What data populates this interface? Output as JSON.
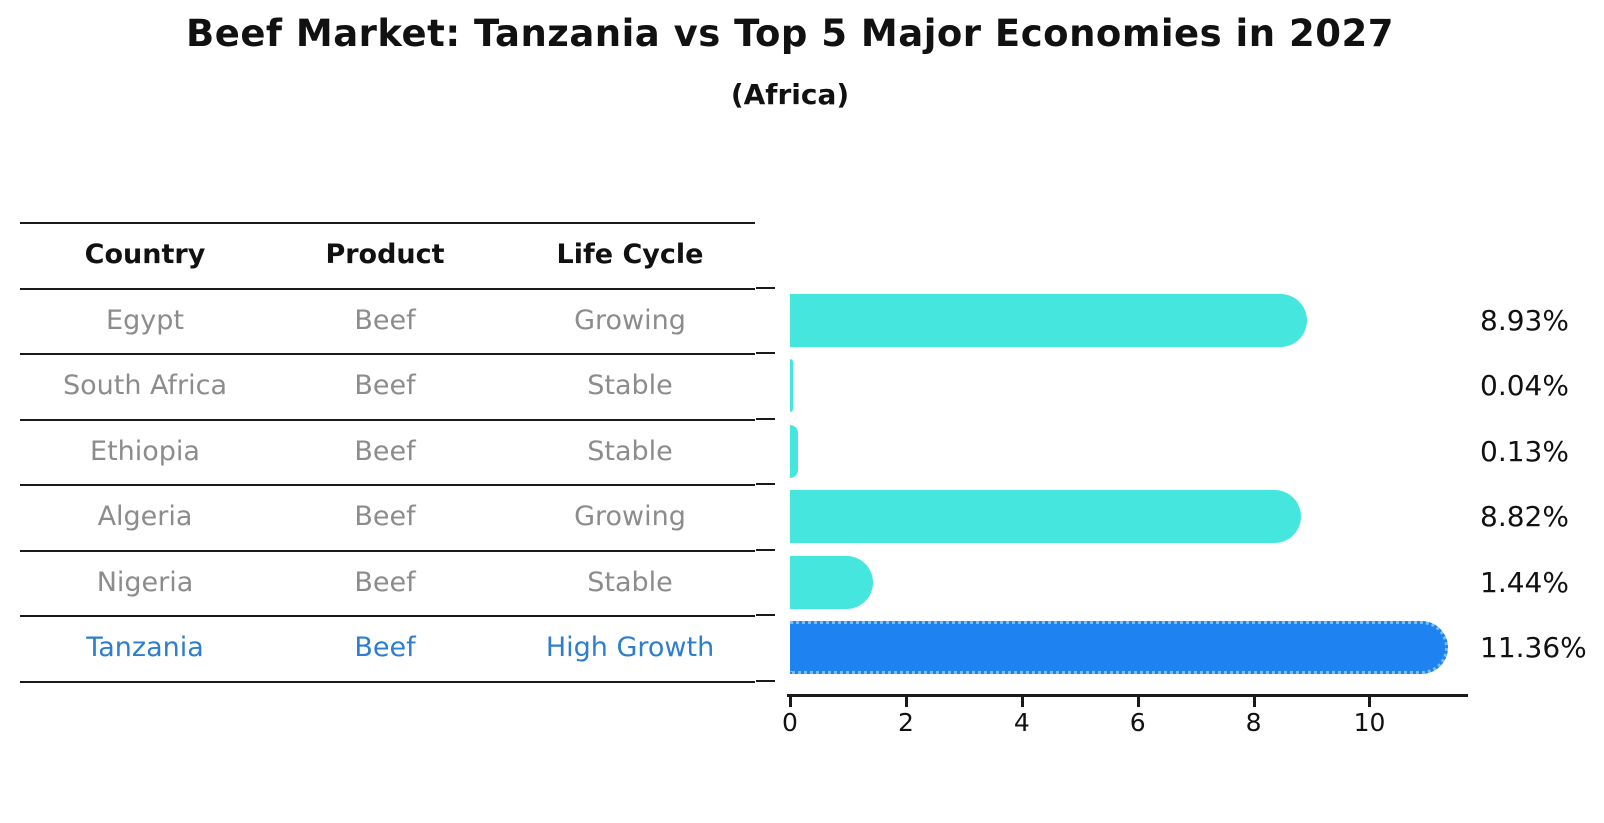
{
  "title": "Beef Market: Tanzania vs Top 5 Major Economies in 2027",
  "subtitle": "(Africa)",
  "table": {
    "headers": {
      "country": "Country",
      "product": "Product",
      "life_cycle": "Life Cycle"
    },
    "rows": [
      {
        "country": "Egypt",
        "product": "Beef",
        "life_cycle": "Growing",
        "highlight": false
      },
      {
        "country": "South Africa",
        "product": "Beef",
        "life_cycle": "Stable",
        "highlight": false
      },
      {
        "country": "Ethiopia",
        "product": "Beef",
        "life_cycle": "Stable",
        "highlight": false
      },
      {
        "country": "Algeria",
        "product": "Beef",
        "life_cycle": "Growing",
        "highlight": false
      },
      {
        "country": "Nigeria",
        "product": "Beef",
        "life_cycle": "Stable",
        "highlight": false
      },
      {
        "country": "Tanzania",
        "product": "Beef",
        "life_cycle": "High Growth",
        "highlight": true
      }
    ]
  },
  "chart_data": {
    "type": "bar",
    "orientation": "horizontal",
    "title": "Beef Market: Tanzania vs Top 5 Major Economies in 2027",
    "subtitle": "(Africa)",
    "categories": [
      "Egypt",
      "South Africa",
      "Ethiopia",
      "Algeria",
      "Nigeria",
      "Tanzania"
    ],
    "values": [
      8.93,
      0.04,
      0.13,
      8.82,
      1.44,
      11.36
    ],
    "value_labels": [
      "8.93%",
      "0.04%",
      "0.13%",
      "8.82%",
      "1.44%",
      "11.36%"
    ],
    "xlabel": "",
    "ylabel": "",
    "xlim": [
      0,
      11.7
    ],
    "xticks": [
      0,
      2,
      4,
      6,
      8,
      10
    ],
    "grid": false,
    "legend": false,
    "highlight_index": 5,
    "colors": {
      "bar": "#45E6DE",
      "highlight_bar": "#1E82F0",
      "highlight_edge": "#7ABDF7",
      "row_text": "#8C8C8C",
      "highlight_text": "#2E7ECF",
      "axis": "#1A1A1A",
      "label": "#111111"
    }
  }
}
